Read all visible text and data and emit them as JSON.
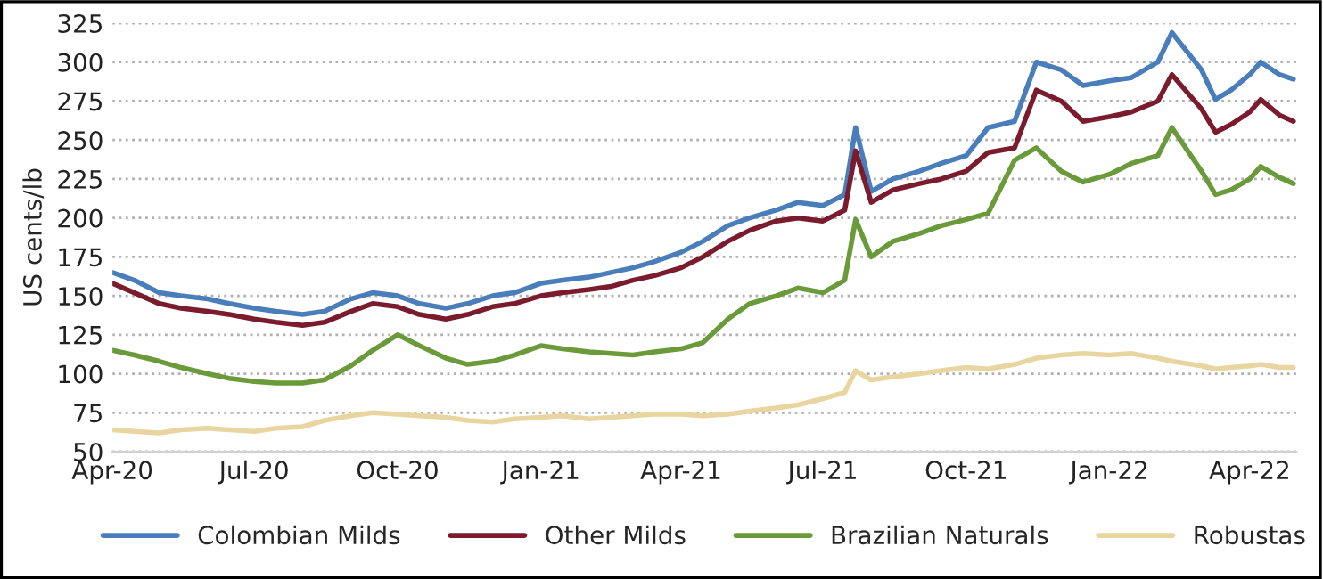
{
  "chart_data": {
    "type": "line",
    "ylabel": "US cents/lb",
    "x": [
      "2020-04-01",
      "2020-04-15",
      "2020-05-01",
      "2020-05-15",
      "2020-06-01",
      "2020-06-15",
      "2020-07-01",
      "2020-07-15",
      "2020-08-01",
      "2020-08-15",
      "2020-09-01",
      "2020-09-15",
      "2020-10-01",
      "2020-10-15",
      "2020-11-01",
      "2020-11-15",
      "2020-12-01",
      "2020-12-15",
      "2021-01-01",
      "2021-01-15",
      "2021-02-01",
      "2021-02-15",
      "2021-03-01",
      "2021-03-15",
      "2021-04-01",
      "2021-04-15",
      "2021-05-01",
      "2021-05-15",
      "2021-06-01",
      "2021-06-15",
      "2021-07-01",
      "2021-07-15",
      "2021-07-22",
      "2021-08-01",
      "2021-08-15",
      "2021-09-01",
      "2021-09-15",
      "2021-10-01",
      "2021-10-15",
      "2021-11-01",
      "2021-11-15",
      "2021-12-01",
      "2021-12-15",
      "2022-01-01",
      "2022-01-15",
      "2022-02-01",
      "2022-02-10",
      "2022-03-01",
      "2022-03-10",
      "2022-03-20",
      "2022-04-01",
      "2022-04-08",
      "2022-04-20",
      "2022-04-29"
    ],
    "series": [
      {
        "name": "Colombian Milds",
        "color": "#4a7ebb",
        "values": [
          165,
          160,
          152,
          150,
          148,
          145,
          142,
          140,
          138,
          140,
          148,
          152,
          150,
          145,
          142,
          145,
          150,
          152,
          158,
          160,
          162,
          165,
          168,
          172,
          178,
          185,
          195,
          200,
          205,
          210,
          208,
          215,
          258,
          217,
          225,
          230,
          235,
          240,
          258,
          262,
          300,
          295,
          285,
          288,
          290,
          300,
          319,
          295,
          276,
          282,
          292,
          300,
          292,
          289
        ]
      },
      {
        "name": "Other Milds",
        "color": "#7b1c2e",
        "values": [
          158,
          152,
          145,
          142,
          140,
          138,
          135,
          133,
          131,
          133,
          140,
          145,
          143,
          138,
          135,
          138,
          143,
          145,
          150,
          152,
          154,
          156,
          160,
          163,
          168,
          175,
          185,
          192,
          198,
          200,
          198,
          205,
          243,
          210,
          218,
          222,
          225,
          230,
          242,
          245,
          282,
          275,
          262,
          265,
          268,
          275,
          292,
          270,
          255,
          260,
          268,
          276,
          266,
          262
        ]
      },
      {
        "name": "Brazilian Naturals",
        "color": "#6a9a3a",
        "values": [
          115,
          112,
          108,
          104,
          100,
          97,
          95,
          94,
          94,
          96,
          105,
          115,
          125,
          118,
          110,
          106,
          108,
          112,
          118,
          116,
          114,
          113,
          112,
          114,
          116,
          120,
          135,
          145,
          150,
          155,
          152,
          160,
          199,
          175,
          185,
          190,
          195,
          199,
          203,
          237,
          245,
          230,
          223,
          228,
          235,
          240,
          258,
          230,
          215,
          218,
          225,
          233,
          226,
          222
        ]
      },
      {
        "name": "Robustas",
        "color": "#e8d5a0",
        "values": [
          64,
          63,
          62,
          64,
          65,
          64,
          63,
          65,
          66,
          70,
          73,
          75,
          74,
          73,
          72,
          70,
          69,
          71,
          72,
          73,
          71,
          72,
          73,
          74,
          74,
          73,
          74,
          76,
          78,
          80,
          84,
          88,
          102,
          96,
          98,
          100,
          102,
          104,
          103,
          106,
          110,
          112,
          113,
          112,
          113,
          110,
          108,
          105,
          103,
          104,
          105,
          106,
          104,
          104
        ]
      }
    ],
    "xlim": [
      "2020-04-01",
      "2022-05-01"
    ],
    "xticks": [
      {
        "value": "2020-04-01",
        "label": "Apr-20"
      },
      {
        "value": "2020-07-01",
        "label": "Jul-20"
      },
      {
        "value": "2020-10-01",
        "label": "Oct-20"
      },
      {
        "value": "2021-01-01",
        "label": "Jan-21"
      },
      {
        "value": "2021-04-01",
        "label": "Apr-21"
      },
      {
        "value": "2021-07-01",
        "label": "Jul-21"
      },
      {
        "value": "2021-10-01",
        "label": "Oct-21"
      },
      {
        "value": "2022-01-01",
        "label": "Jan-22"
      },
      {
        "value": "2022-04-01",
        "label": "Apr-22"
      }
    ],
    "ylim": [
      50,
      325
    ],
    "yticks": [
      50,
      75,
      100,
      125,
      150,
      175,
      200,
      225,
      250,
      275,
      300,
      325
    ],
    "grid": "y",
    "legend": "bottom",
    "line_style": "solid",
    "marker": "none"
  }
}
